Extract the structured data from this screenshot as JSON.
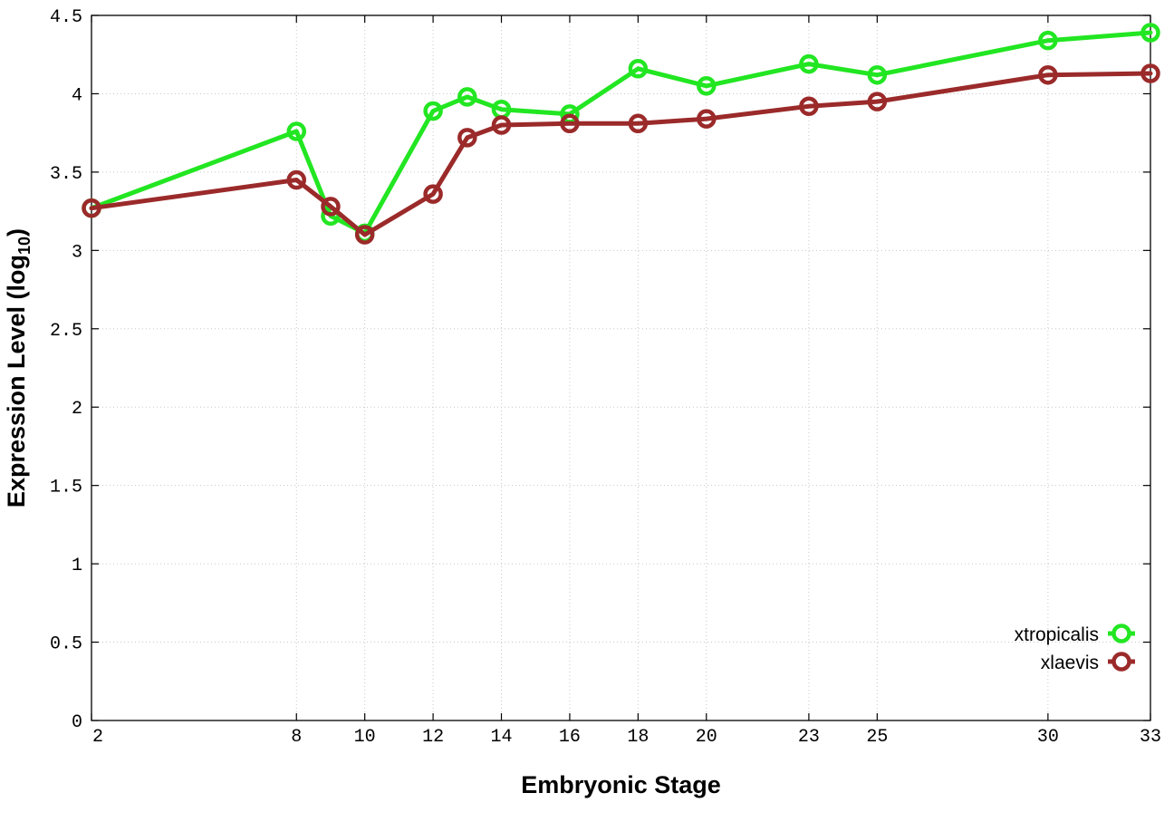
{
  "chart_data": {
    "type": "line",
    "title": "",
    "xlabel": "Embryonic Stage",
    "ylabel_main": "Expression Level (log",
    "ylabel_sub": "10",
    "ylabel_close": ")",
    "xlim": [
      2,
      33
    ],
    "ylim": [
      0,
      4.5
    ],
    "x": [
      2,
      8,
      9,
      10,
      12,
      13,
      14,
      16,
      18,
      20,
      23,
      25,
      30,
      33
    ],
    "x_tick_labels": [
      "2",
      "8",
      "10",
      "12",
      "14",
      "16",
      "18",
      "20",
      "23",
      "25",
      "30",
      "33"
    ],
    "x_ticks": [
      2,
      8,
      10,
      12,
      14,
      16,
      18,
      20,
      23,
      25,
      30,
      33
    ],
    "y_ticks": [
      0,
      0.5,
      1,
      1.5,
      2,
      2.5,
      3,
      3.5,
      4,
      4.5
    ],
    "y_tick_labels": [
      "0",
      "0.5",
      "1",
      "1.5",
      "2",
      "2.5",
      "3",
      "3.5",
      "4",
      "4.5"
    ],
    "grid": true,
    "legend_position": "bottom-right",
    "series": [
      {
        "name": "xtropicalis",
        "color": "#22e622",
        "marker": "open-circle",
        "values": [
          3.27,
          3.76,
          3.22,
          3.11,
          3.89,
          3.98,
          3.9,
          3.87,
          4.16,
          4.05,
          4.19,
          4.12,
          4.34,
          4.39
        ]
      },
      {
        "name": "xlaevis",
        "color": "#9b2a2a",
        "marker": "open-circle",
        "values": [
          3.27,
          3.45,
          3.28,
          3.1,
          3.36,
          3.72,
          3.8,
          3.81,
          3.81,
          3.84,
          3.92,
          3.95,
          4.12,
          4.13
        ]
      }
    ]
  }
}
